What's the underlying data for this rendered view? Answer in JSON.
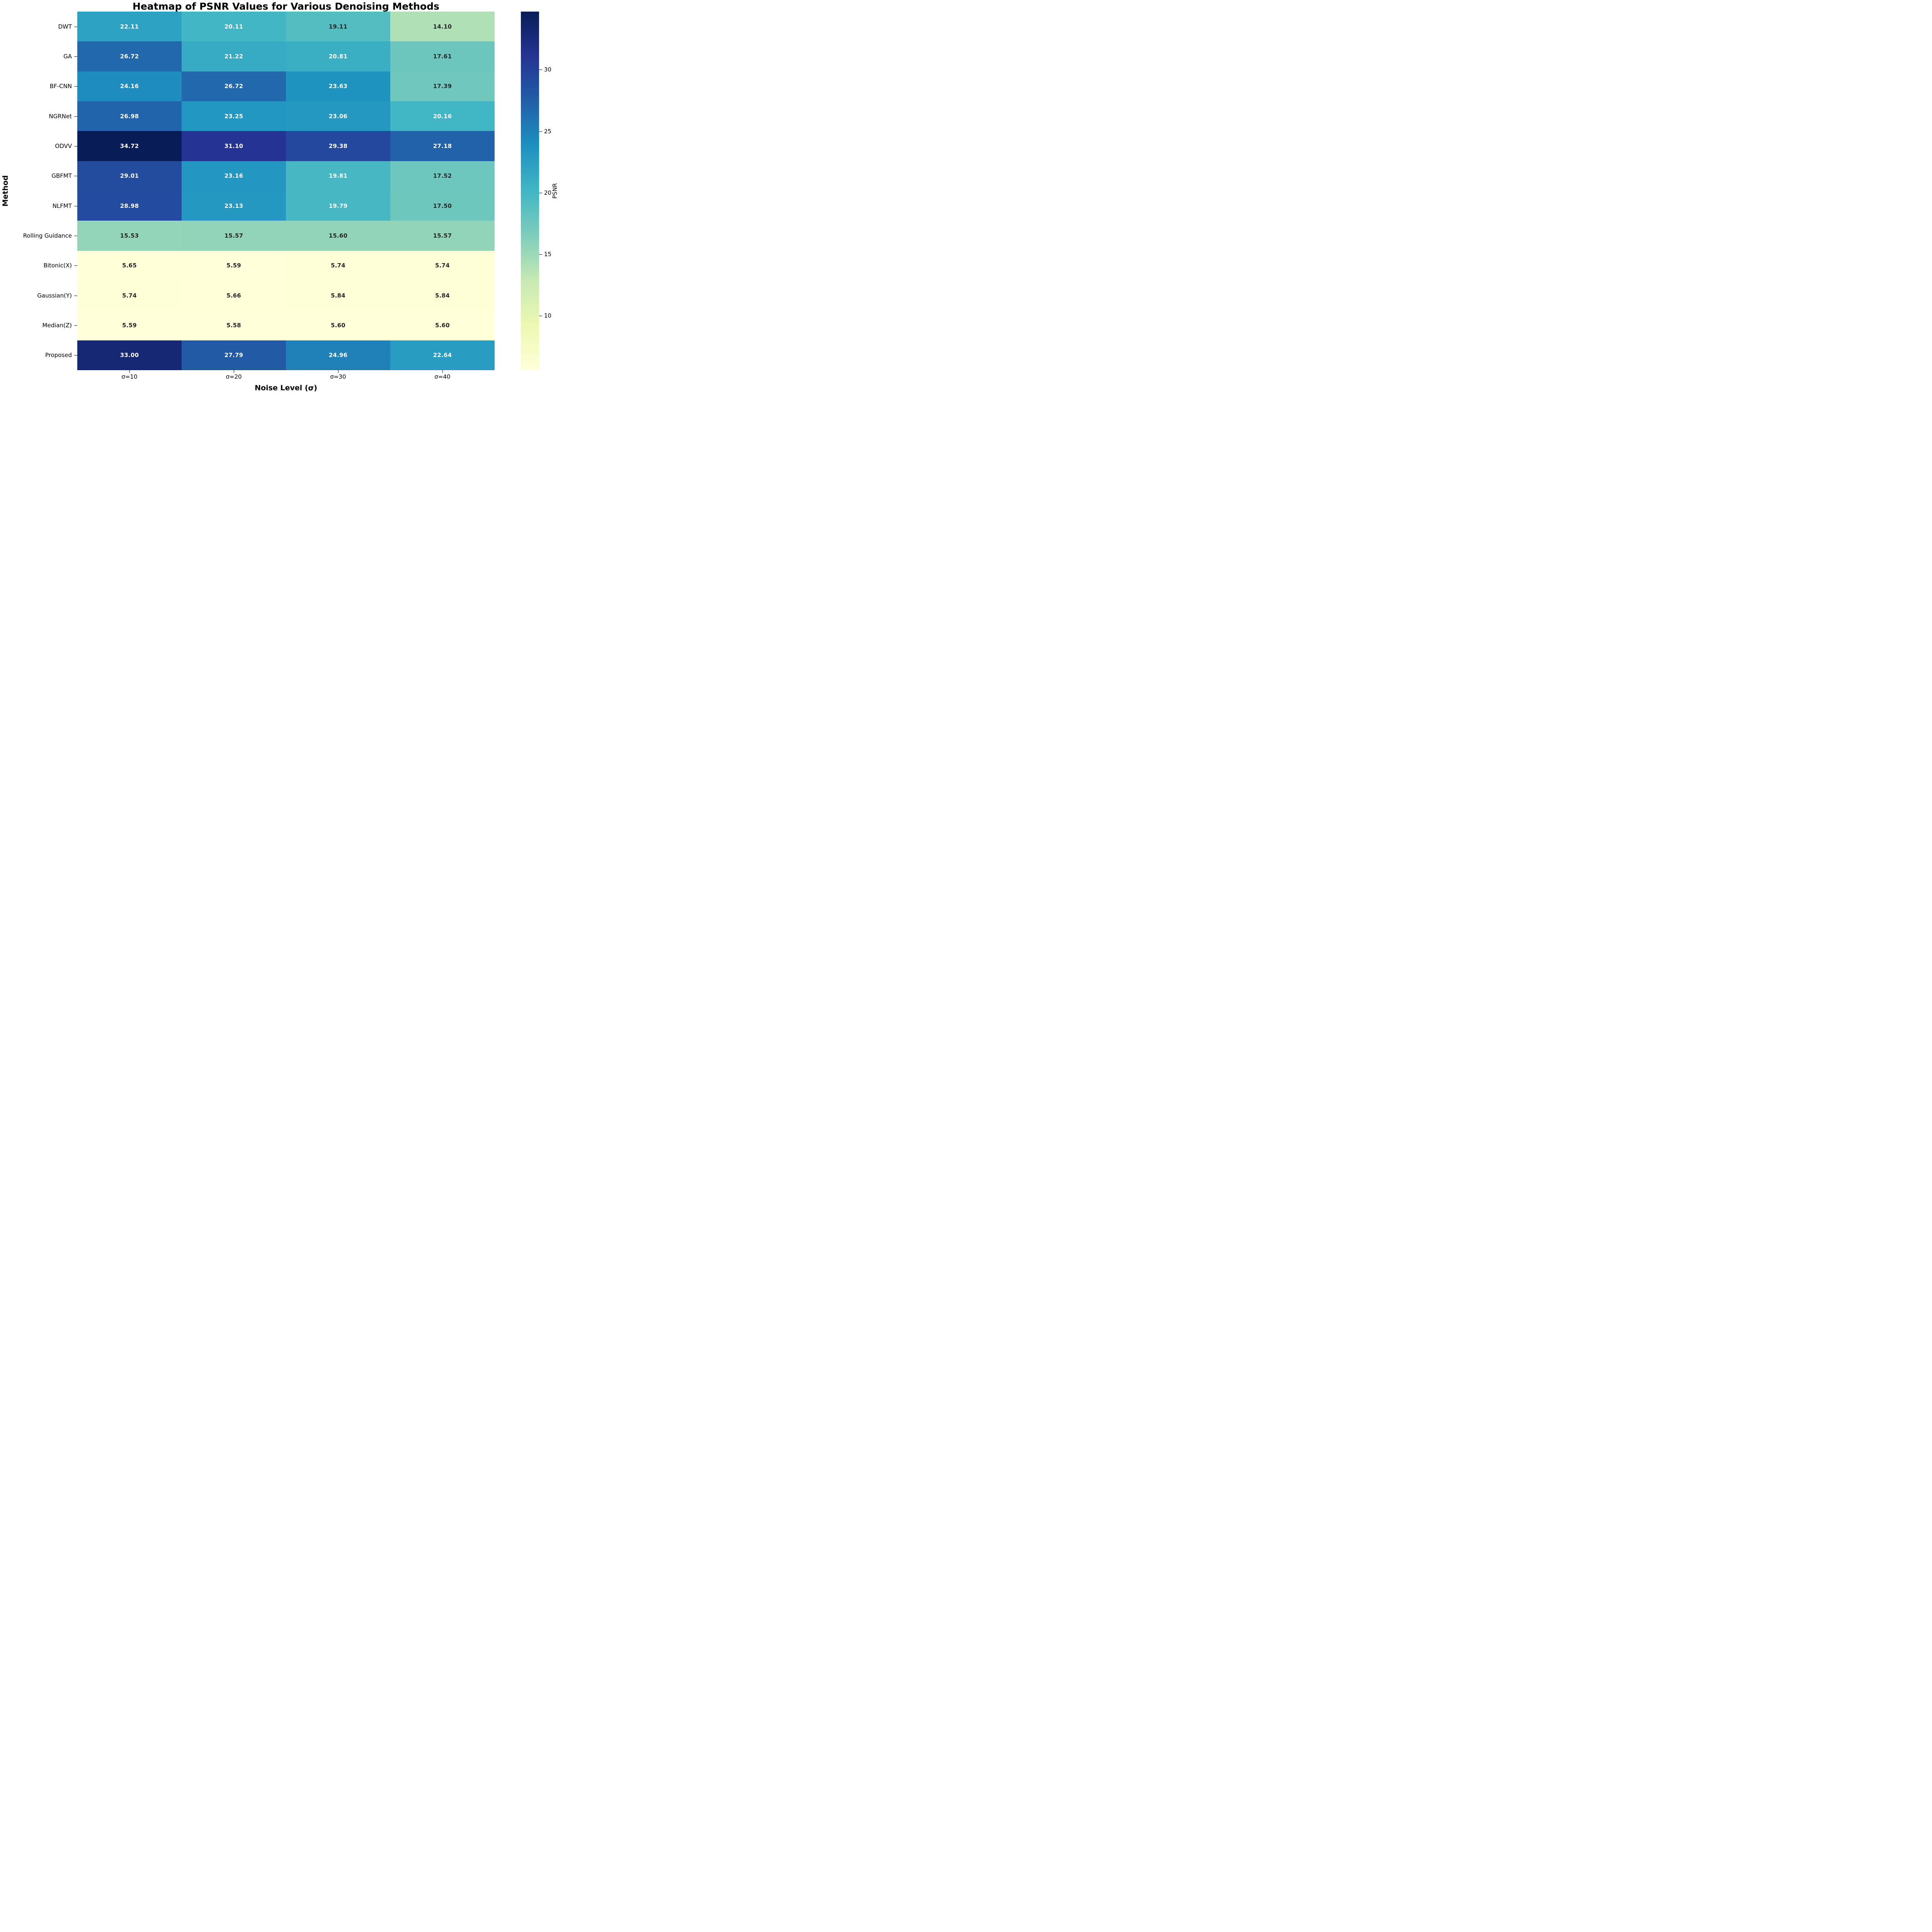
{
  "chart_data": {
    "type": "heatmap",
    "title": "Heatmap of PSNR Values for Various Denoising Methods",
    "xlabel": "Noise Level (σ)",
    "ylabel": "Method",
    "colorbar_label": "PSNR",
    "columns": [
      "σ=10",
      "σ=20",
      "σ=30",
      "σ=40"
    ],
    "rows": [
      "DWT",
      "GA",
      "BF-CNN",
      "NGRNet",
      "ODVV",
      "GBFMT",
      "NLFMT",
      "Rolling Guidance",
      "Bitonic(X)",
      "Gaussian(Y)",
      "Median(Z)",
      "Proposed"
    ],
    "values": [
      [
        22.11,
        20.11,
        19.11,
        14.1
      ],
      [
        26.72,
        21.22,
        20.81,
        17.61
      ],
      [
        24.16,
        26.72,
        23.63,
        17.39
      ],
      [
        26.98,
        23.25,
        23.06,
        20.16
      ],
      [
        34.72,
        31.1,
        29.38,
        27.18
      ],
      [
        29.01,
        23.16,
        19.81,
        17.52
      ],
      [
        28.98,
        23.13,
        19.79,
        17.5
      ],
      [
        15.53,
        15.57,
        15.6,
        15.57
      ],
      [
        5.65,
        5.59,
        5.74,
        5.74
      ],
      [
        5.74,
        5.66,
        5.84,
        5.84
      ],
      [
        5.59,
        5.58,
        5.6,
        5.6
      ],
      [
        33.0,
        27.79,
        24.96,
        22.64
      ]
    ],
    "value_format_decimals": 2,
    "vmin": 5.58,
    "vmax": 34.72,
    "colorbar_ticks": [
      30,
      25,
      20,
      15,
      10
    ],
    "colormap": "YlGnBu",
    "colormap_stops": [
      "#ffffd9",
      "#edf8b1",
      "#c7e9b4",
      "#7fcdbb",
      "#41b6c4",
      "#1d91c0",
      "#225ea8",
      "#253494",
      "#081d58"
    ],
    "annotation_color_light": "#ffffff",
    "annotation_color_dark": "#262626",
    "luminance_threshold": 0.408,
    "legend_position": "right-colorbar",
    "grid": false
  }
}
